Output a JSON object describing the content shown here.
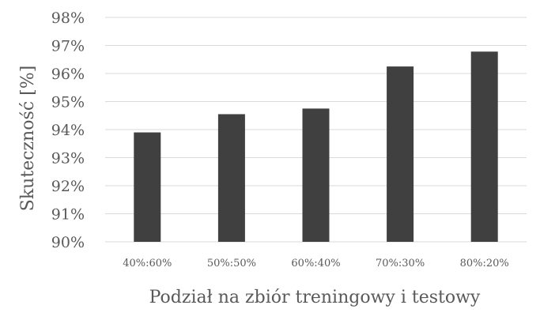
{
  "chart_data": {
    "type": "bar",
    "categories": [
      "40%:60%",
      "50%:50%",
      "60%:40%",
      "70%:30%",
      "80%:20%"
    ],
    "values": [
      93.9,
      94.55,
      94.75,
      96.25,
      96.78
    ],
    "ylim": [
      90,
      98
    ],
    "yticks": [
      90,
      91,
      92,
      93,
      94,
      95,
      96,
      97,
      98
    ],
    "ytick_labels": [
      "90%",
      "91%",
      "92%",
      "93%",
      "94%",
      "95%",
      "96%",
      "97%",
      "98%"
    ],
    "xlabel": "Podział na zbiór treningowy i testowy",
    "ylabel": "Skuteczność [%]",
    "grid": true,
    "bar_color": "#404040",
    "grid_color": "#d9d9d9",
    "text_color": "#595959"
  }
}
